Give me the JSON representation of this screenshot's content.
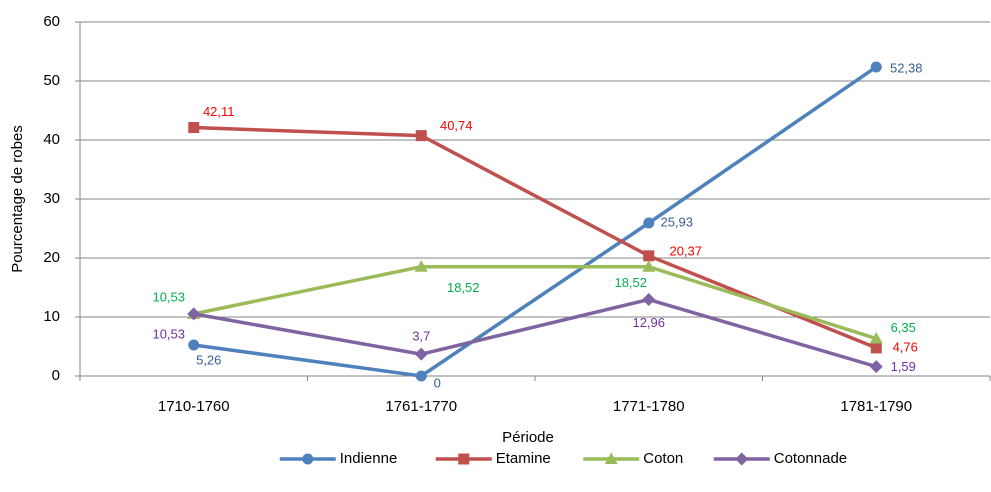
{
  "chart_data": {
    "type": "line",
    "categories": [
      "1710-1760",
      "1761-1770",
      "1771-1780",
      "1781-1790"
    ],
    "series": [
      {
        "name": "Indienne",
        "color": "#4f81bd",
        "marker": "circle",
        "values": [
          5.26,
          0,
          25.93,
          52.38
        ],
        "value_labels": [
          "5,26",
          "0",
          "25,93",
          "52,38"
        ]
      },
      {
        "name": "Etamine",
        "color": "#c0504d",
        "marker": "square",
        "values": [
          42.11,
          40.74,
          20.37,
          4.76
        ],
        "value_labels": [
          "42,11",
          "40,74",
          "20,37",
          "4,76"
        ]
      },
      {
        "name": "Coton",
        "color": "#9bbb59",
        "marker": "triangle",
        "values": [
          10.53,
          18.52,
          18.52,
          6.35
        ],
        "value_labels": [
          "10,53",
          "18,52",
          "18,52",
          "6,35"
        ]
      },
      {
        "name": "Cotonnade",
        "color": "#8064a2",
        "marker": "diamond",
        "values": [
          10.53,
          3.7,
          12.96,
          1.59
        ],
        "value_labels": [
          "10,53",
          "3,7",
          "12,96",
          "1,59"
        ]
      }
    ],
    "xlabel": "Période",
    "ylabel": "Pourcentage de robes",
    "ylim": [
      0,
      60
    ],
    "yticks": [
      0,
      10,
      20,
      30,
      40,
      50,
      60
    ],
    "grid": true,
    "legend": "bottom"
  }
}
